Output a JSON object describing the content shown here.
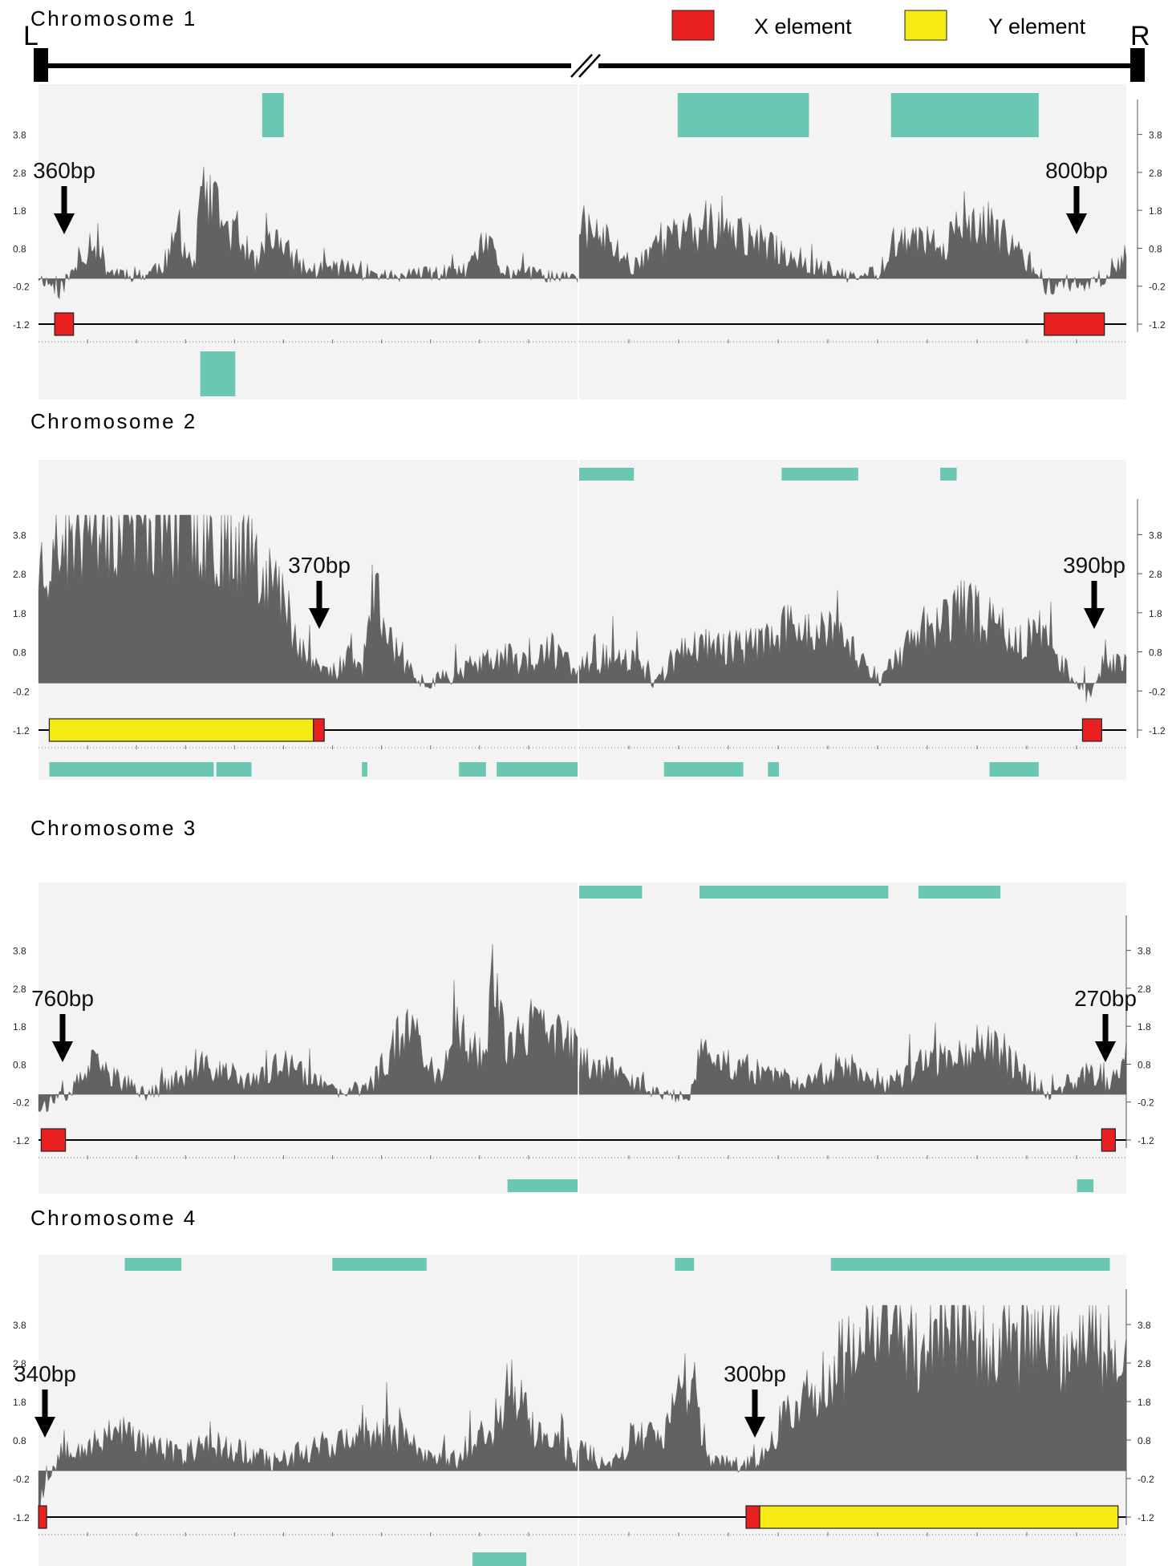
{
  "header": {
    "left_label": "L",
    "right_label": "R",
    "legend": [
      {
        "label": "X element",
        "color": "#e8201f"
      },
      {
        "label": "Y element",
        "color": "#f5ea14"
      }
    ]
  },
  "colors": {
    "signal": "#626262",
    "panel_bg": "#f3f3f3",
    "teal": "#6cc6b4",
    "x_element": "#e8201f",
    "y_element": "#f5ea14"
  },
  "chart_data": [
    {
      "type": "area",
      "title": "Chromosome 1",
      "yticks": [
        "3.8",
        "2.8",
        "1.8",
        "0.8",
        "-0.2",
        "-1.2"
      ],
      "ylim": [
        -1.2,
        4.3
      ],
      "seed": 11,
      "arrows": [
        {
          "label": "360bp",
          "end": "left"
        },
        {
          "label": "800bp",
          "end": "right"
        }
      ],
      "elements": {
        "left": [
          {
            "type": "X",
            "start": 0.03,
            "end": 0.065
          }
        ],
        "right": [
          {
            "type": "X",
            "start": 0.85,
            "end": 0.96
          }
        ]
      },
      "profile": {
        "left": [
          [
            0,
            0.05
          ],
          [
            0.04,
            -0.3
          ],
          [
            0.08,
            0.5
          ],
          [
            0.1,
            1.1
          ],
          [
            0.13,
            0.2
          ],
          [
            0.2,
            0.1
          ],
          [
            0.24,
            0.5
          ],
          [
            0.26,
            1.3
          ],
          [
            0.29,
            0.2
          ],
          [
            0.3,
            2.3
          ],
          [
            0.36,
            1.2
          ],
          [
            0.41,
            0.3
          ],
          [
            0.42,
            1.2
          ],
          [
            0.5,
            0.2
          ],
          [
            0.55,
            0.3
          ],
          [
            0.66,
            0.05
          ],
          [
            0.8,
            0.2
          ],
          [
            0.83,
            1.0
          ],
          [
            0.86,
            0.2
          ],
          [
            1,
            0.0
          ]
        ],
        "right": [
          [
            0,
            1.4
          ],
          [
            0.05,
            1.0
          ],
          [
            0.1,
            0.3
          ],
          [
            0.14,
            1.0
          ],
          [
            0.25,
            1.3
          ],
          [
            0.32,
            1.0
          ],
          [
            0.42,
            0.4
          ],
          [
            0.5,
            0.0
          ],
          [
            0.55,
            0.2
          ],
          [
            0.57,
            1.0
          ],
          [
            0.65,
            0.9
          ],
          [
            0.75,
            1.4
          ],
          [
            0.82,
            0.5
          ],
          [
            0.85,
            -0.2
          ],
          [
            0.95,
            -0.1
          ],
          [
            0.98,
            0.2
          ],
          [
            1,
            0.8
          ]
        ]
      },
      "tracks": {
        "left_top": [
          [
            0.415,
            0.455
          ]
        ],
        "right_top": [
          [
            0.18,
            0.42
          ],
          [
            0.57,
            0.84
          ]
        ],
        "left_bottom": [
          [
            0.3,
            0.365
          ]
        ],
        "right_bottom": []
      }
    },
    {
      "type": "area",
      "title": "Chromosome 2",
      "yticks": [
        "3.8",
        "2.8",
        "1.8",
        "0.8",
        "-0.2",
        "-1.2"
      ],
      "ylim": [
        -1.2,
        4.3
      ],
      "seed": 23,
      "arrows": [
        {
          "label": "370bp",
          "end": "left"
        },
        {
          "label": "390bp",
          "end": "right"
        }
      ],
      "elements": {
        "left": [
          {
            "type": "Y",
            "start": 0.02,
            "end": 0.51
          },
          {
            "type": "X",
            "start": 0.51,
            "end": 0.53
          }
        ],
        "right": [
          {
            "type": "X",
            "start": 0.92,
            "end": 0.955
          }
        ]
      },
      "profile": {
        "left": [
          [
            0,
            3.0
          ],
          [
            0.04,
            3.5
          ],
          [
            0.1,
            4.1
          ],
          [
            0.2,
            4.3
          ],
          [
            0.3,
            4.0
          ],
          [
            0.4,
            3.5
          ],
          [
            0.45,
            2.2
          ],
          [
            0.5,
            0.6
          ],
          [
            0.55,
            0.2
          ],
          [
            0.58,
            0.9
          ],
          [
            0.6,
            0.3
          ],
          [
            0.62,
            2.5
          ],
          [
            0.64,
            1.5
          ],
          [
            0.68,
            0.4
          ],
          [
            0.72,
            0.0
          ],
          [
            0.8,
            0.4
          ],
          [
            0.86,
            0.7
          ],
          [
            0.9,
            0.5
          ],
          [
            0.95,
            0.8
          ],
          [
            1,
            0.4
          ]
        ],
        "right": [
          [
            0,
            0.4
          ],
          [
            0.08,
            0.8
          ],
          [
            0.14,
            0.0
          ],
          [
            0.2,
            1.0
          ],
          [
            0.3,
            0.9
          ],
          [
            0.4,
            1.5
          ],
          [
            0.48,
            1.2
          ],
          [
            0.55,
            0.1
          ],
          [
            0.63,
            1.4
          ],
          [
            0.7,
            1.9
          ],
          [
            0.8,
            1.2
          ],
          [
            0.86,
            1.0
          ],
          [
            0.9,
            0.2
          ],
          [
            0.93,
            -0.3
          ],
          [
            0.96,
            0.5
          ],
          [
            1,
            0.6
          ]
        ]
      },
      "tracks": {
        "left_top": [],
        "right_top": [
          [
            0.0,
            0.1
          ],
          [
            0.37,
            0.51
          ],
          [
            0.66,
            0.69
          ]
        ],
        "left_bottom": [
          [
            0.02,
            0.325
          ],
          [
            0.33,
            0.395
          ],
          [
            0.6,
            0.61
          ],
          [
            0.78,
            0.83
          ],
          [
            0.85,
            1.0
          ]
        ],
        "right_bottom": [
          [
            0.155,
            0.3
          ],
          [
            0.345,
            0.365
          ],
          [
            0.75,
            0.84
          ]
        ]
      }
    },
    {
      "type": "area",
      "title": "Chromosome 3",
      "yticks": [
        "3.8",
        "2.8",
        "1.8",
        "0.8",
        "-0.2",
        "-1.2"
      ],
      "ylim": [
        -1.2,
        4.3
      ],
      "seed": 37,
      "arrows": [
        {
          "label": "760bp",
          "end": "left"
        },
        {
          "label": "270bp",
          "end": "right"
        }
      ],
      "elements": {
        "left": [
          {
            "type": "X",
            "start": 0.005,
            "end": 0.05
          }
        ],
        "right": [
          {
            "type": "X",
            "start": 0.955,
            "end": 0.98
          }
        ]
      },
      "profile": {
        "left": [
          [
            0,
            -0.3
          ],
          [
            0.05,
            -0.1
          ],
          [
            0.1,
            0.8
          ],
          [
            0.16,
            0.3
          ],
          [
            0.2,
            0.0
          ],
          [
            0.26,
            0.4
          ],
          [
            0.32,
            0.7
          ],
          [
            0.4,
            0.3
          ],
          [
            0.45,
            0.8
          ],
          [
            0.52,
            0.3
          ],
          [
            0.56,
            0.0
          ],
          [
            0.62,
            0.3
          ],
          [
            0.68,
            1.8
          ],
          [
            0.74,
            0.5
          ],
          [
            0.78,
            1.7
          ],
          [
            0.83,
            0.7
          ],
          [
            0.84,
            3.9
          ],
          [
            0.87,
            1.2
          ],
          [
            0.92,
            1.7
          ],
          [
            0.96,
            1.6
          ],
          [
            1,
            1.2
          ]
        ],
        "right": [
          [
            0,
            0.9
          ],
          [
            0.08,
            0.6
          ],
          [
            0.12,
            0.1
          ],
          [
            0.2,
            -0.1
          ],
          [
            0.22,
            1.0
          ],
          [
            0.3,
            0.7
          ],
          [
            0.4,
            0.3
          ],
          [
            0.5,
            0.8
          ],
          [
            0.56,
            0.2
          ],
          [
            0.64,
            0.9
          ],
          [
            0.7,
            1.2
          ],
          [
            0.76,
            1.4
          ],
          [
            0.8,
            0.7
          ],
          [
            0.86,
            0.0
          ],
          [
            0.9,
            0.3
          ],
          [
            0.94,
            0.6
          ],
          [
            0.97,
            0.2
          ],
          [
            1,
            1.1
          ]
        ]
      },
      "tracks": {
        "left_top": [],
        "right_top": [
          [
            0.0,
            0.115
          ],
          [
            0.22,
            0.565
          ],
          [
            0.62,
            0.77
          ]
        ],
        "left_bottom": [
          [
            0.87,
            1.0
          ]
        ],
        "right_bottom": [
          [
            0.91,
            0.94
          ]
        ]
      }
    },
    {
      "type": "area",
      "title": "Chromosome 4",
      "yticks": [
        "3.8",
        "2.8",
        "1.8",
        "0.8",
        "-0.2",
        "-1.2"
      ],
      "ylim": [
        -1.2,
        4.3
      ],
      "seed": 53,
      "arrows": [
        {
          "label": "340bp",
          "end": "left"
        },
        {
          "label": "300bp",
          "end": "right"
        }
      ],
      "elements": {
        "left": [
          {
            "type": "X",
            "start": 0.0,
            "end": 0.015
          }
        ],
        "right": [
          {
            "type": "X",
            "start": 0.305,
            "end": 0.33
          },
          {
            "type": "Y",
            "start": 0.33,
            "end": 0.985
          }
        ]
      },
      "profile": {
        "left": [
          [
            0,
            -0.8
          ],
          [
            0.02,
            -0.1
          ],
          [
            0.05,
            0.7
          ],
          [
            0.1,
            0.6
          ],
          [
            0.14,
            1.2
          ],
          [
            0.18,
            0.8
          ],
          [
            0.26,
            0.4
          ],
          [
            0.32,
            0.7
          ],
          [
            0.38,
            0.5
          ],
          [
            0.44,
            0.2
          ],
          [
            0.52,
            0.7
          ],
          [
            0.6,
            0.8
          ],
          [
            0.66,
            1.0
          ],
          [
            0.72,
            0.4
          ],
          [
            0.78,
            0.3
          ],
          [
            0.84,
            1.1
          ],
          [
            0.88,
            2.4
          ],
          [
            0.92,
            0.9
          ],
          [
            0.96,
            0.8
          ],
          [
            1,
            0.3
          ]
        ],
        "right": [
          [
            0,
            0.6
          ],
          [
            0.06,
            0.1
          ],
          [
            0.1,
            1.0
          ],
          [
            0.15,
            0.7
          ],
          [
            0.2,
            2.5
          ],
          [
            0.24,
            0.2
          ],
          [
            0.3,
            0.2
          ],
          [
            0.34,
            0.4
          ],
          [
            0.38,
            1.5
          ],
          [
            0.44,
            2.2
          ],
          [
            0.5,
            3.2
          ],
          [
            0.55,
            3.9
          ],
          [
            0.62,
            3.3
          ],
          [
            0.7,
            3.7
          ],
          [
            0.78,
            3.2
          ],
          [
            0.85,
            3.6
          ],
          [
            0.9,
            3.0
          ],
          [
            0.95,
            3.4
          ],
          [
            1,
            2.8
          ]
        ]
      },
      "tracks": {
        "left_top": [
          [
            0.16,
            0.265
          ],
          [
            0.545,
            0.72
          ]
        ],
        "right_top": [
          [
            0.175,
            0.21
          ],
          [
            0.46,
            0.97
          ]
        ],
        "left_bottom": [
          [
            0.805,
            0.905
          ]
        ],
        "right_bottom": []
      }
    }
  ]
}
